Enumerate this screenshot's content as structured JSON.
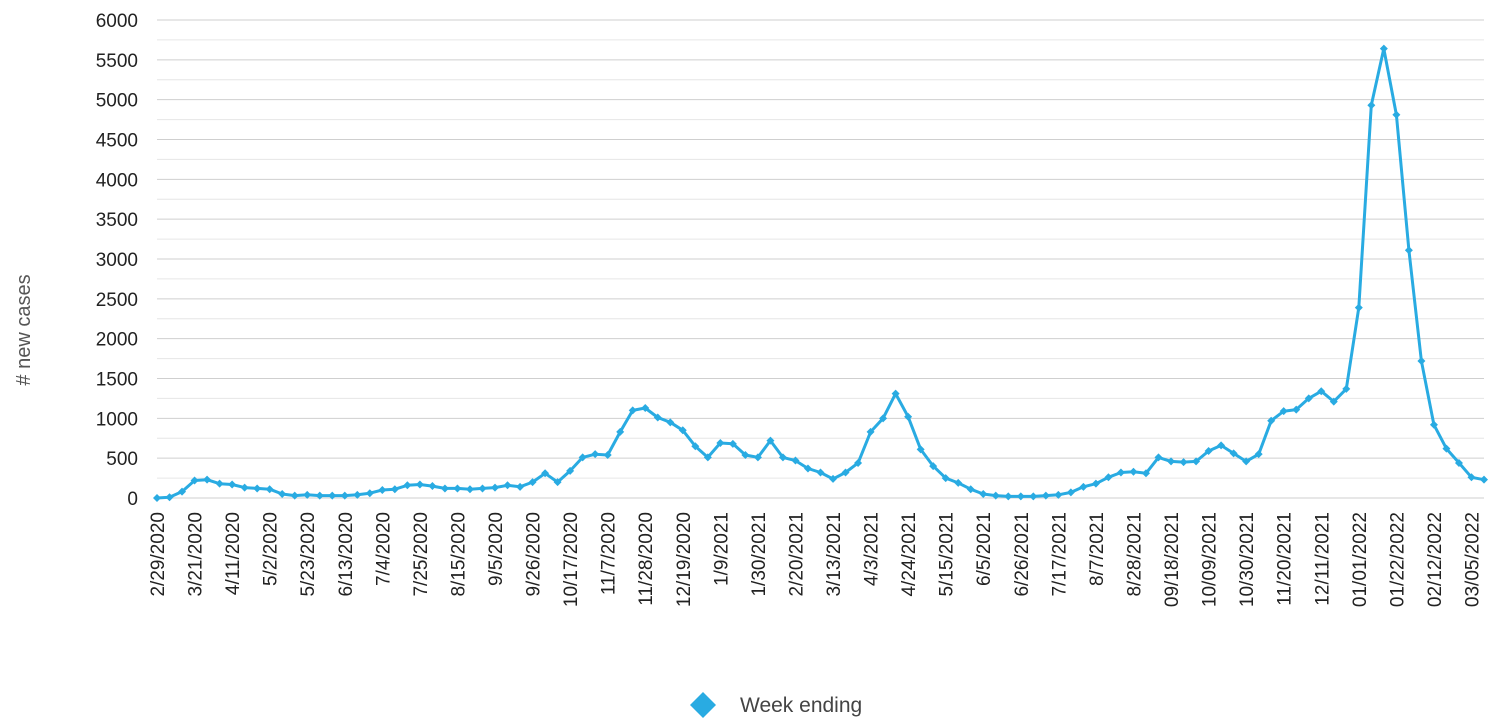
{
  "chart_data": {
    "type": "line",
    "ylabel": "# new cases",
    "xlabel": "",
    "ylim": [
      0,
      6000
    ],
    "yticks": [
      0,
      500,
      1000,
      1500,
      2000,
      2500,
      3000,
      3500,
      4000,
      4500,
      5000,
      5500,
      6000
    ],
    "grid": true,
    "legend_position": "bottom",
    "x_tick_labels": [
      "2/29/2020",
      "3/21/2020",
      "4/11/2020",
      "5/2/2020",
      "5/23/2020",
      "6/13/2020",
      "7/4/2020",
      "7/25/2020",
      "8/15/2020",
      "9/5/2020",
      "9/26/2020",
      "10/17/2020",
      "11/7/2020",
      "11/28/2020",
      "12/19/2020",
      "1/9/2021",
      "1/30/2021",
      "2/20/2021",
      "3/13/2021",
      "4/3/2021",
      "4/24/2021",
      "5/15/2021",
      "6/5/2021",
      "6/26/2021",
      "7/17/2021",
      "8/7/2021",
      "8/28/2021",
      "09/18/2021",
      "10/09/2021",
      "10/30/2021",
      "11/20/2021",
      "12/11/2021",
      "01/01/2022",
      "01/22/2022",
      "02/12/2022",
      "03/05/2022"
    ],
    "series": [
      {
        "name": "Week ending",
        "color": "#29abe2",
        "marker": "diamond",
        "values": [
          0,
          10,
          80,
          220,
          230,
          180,
          170,
          130,
          120,
          110,
          50,
          30,
          40,
          30,
          30,
          30,
          40,
          60,
          100,
          110,
          160,
          170,
          150,
          120,
          120,
          110,
          120,
          130,
          160,
          140,
          200,
          310,
          200,
          340,
          510,
          550,
          540,
          830,
          1100,
          1130,
          1010,
          950,
          850,
          650,
          510,
          690,
          680,
          540,
          510,
          720,
          510,
          470,
          370,
          320,
          240,
          320,
          440,
          830,
          1000,
          1310,
          1020,
          610,
          400,
          250,
          190,
          110,
          50,
          30,
          20,
          20,
          20,
          30,
          40,
          70,
          140,
          180,
          260,
          320,
          330,
          310,
          510,
          460,
          450,
          460,
          590,
          660,
          560,
          460,
          550,
          970,
          1090,
          1110,
          1250,
          1340,
          1210,
          1370,
          2390,
          4930,
          5640,
          4810,
          3110,
          1720,
          920,
          620,
          440,
          260,
          230
        ]
      }
    ]
  }
}
